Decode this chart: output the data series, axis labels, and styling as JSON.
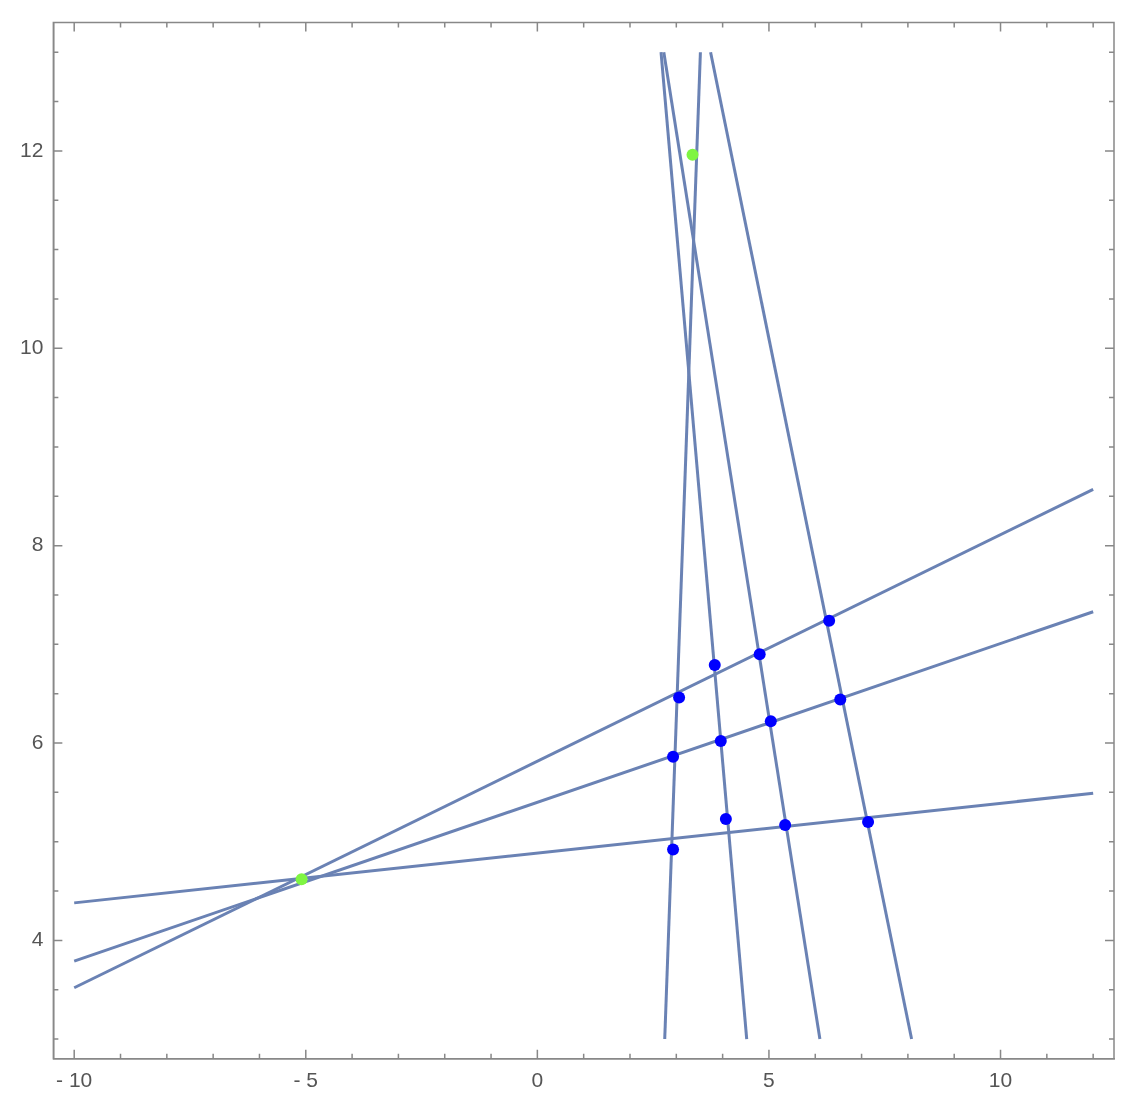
{
  "chart_data": {
    "type": "line",
    "xlim": [
      -10.45,
      12.45
    ],
    "ylim": [
      2.8,
      13.3
    ],
    "xticks": [
      {
        "value": -10,
        "label": "- 10"
      },
      {
        "value": -9,
        "label": null
      },
      {
        "value": -8,
        "label": null
      },
      {
        "value": -7,
        "label": null
      },
      {
        "value": -6,
        "label": null
      },
      {
        "value": -5,
        "label": "- 5"
      },
      {
        "value": -4,
        "label": null
      },
      {
        "value": -3,
        "label": null
      },
      {
        "value": -2,
        "label": null
      },
      {
        "value": -1,
        "label": null
      },
      0,
      {
        "value": 1,
        "label": null
      },
      {
        "value": 2,
        "label": null
      },
      {
        "value": 3,
        "label": null
      },
      {
        "value": 4,
        "label": null
      },
      5,
      {
        "value": 6,
        "label": null
      },
      {
        "value": 7,
        "label": null
      },
      {
        "value": 8,
        "label": null
      },
      {
        "value": 9,
        "label": null
      },
      10,
      {
        "value": 11,
        "label": null
      },
      {
        "value": 12,
        "label": null
      }
    ],
    "yticks": [
      {
        "value": 3,
        "label": null
      },
      {
        "value": 3.5,
        "label": null
      },
      4,
      {
        "value": 4.5,
        "label": null
      },
      {
        "value": 5,
        "label": null
      },
      {
        "value": 5.5,
        "label": null
      },
      6,
      {
        "value": 6.5,
        "label": null
      },
      {
        "value": 7,
        "label": null
      },
      {
        "value": 7.5,
        "label": null
      },
      8,
      {
        "value": 8.5,
        "label": null
      },
      {
        "value": 9,
        "label": null
      },
      {
        "value": 9.5,
        "label": null
      },
      10,
      {
        "value": 10.5,
        "label": null
      },
      {
        "value": 11,
        "label": null
      },
      {
        "value": 11.5,
        "label": null
      },
      12,
      {
        "value": 12.5,
        "label": null
      },
      {
        "value": 13,
        "label": null
      }
    ],
    "grid": false,
    "legend": false,
    "line_style": "solid",
    "series": [
      {
        "type": "line",
        "marker": "none",
        "color": "#6a82b4",
        "x": [
          -10,
          12
        ],
        "values": [
          3.52,
          8.57
        ]
      },
      {
        "type": "line",
        "marker": "none",
        "color": "#6a82b4",
        "x": [
          -10,
          12
        ],
        "values": [
          3.79,
          7.33
        ]
      },
      {
        "type": "line",
        "marker": "none",
        "color": "#6a82b4",
        "x": [
          -10,
          12
        ],
        "values": [
          4.38,
          5.49
        ]
      },
      {
        "type": "line",
        "marker": "none",
        "color": "#6a82b4",
        "x": [
          2.75,
          3.52
        ],
        "values": [
          3,
          13
        ]
      },
      {
        "type": "line",
        "marker": "none",
        "color": "#6a82b4",
        "x": [
          4.52,
          2.67
        ],
        "values": [
          3,
          13
        ]
      },
      {
        "type": "line",
        "marker": "none",
        "color": "#6a82b4",
        "x": [
          6.1,
          2.73
        ],
        "values": [
          3,
          13
        ]
      },
      {
        "type": "line",
        "marker": "none",
        "color": "#6a82b4",
        "x": [
          8.08,
          3.74
        ],
        "values": [
          3,
          13
        ]
      },
      {
        "type": "scatter",
        "marker": "circle",
        "color": "#0000ff",
        "x": [
          3.06,
          3.83,
          4.8,
          6.3,
          2.93,
          3.96,
          5.04,
          6.54,
          4.07,
          5.35,
          7.14,
          2.93
        ],
        "values": [
          6.46,
          6.79,
          6.9,
          7.24,
          5.86,
          6.02,
          6.22,
          6.44,
          5.23,
          5.17,
          5.2,
          4.92
        ]
      },
      {
        "type": "scatter",
        "marker": "circle",
        "color": "#7ff542",
        "x": [
          3.35,
          -5.09
        ],
        "values": [
          11.96,
          4.62
        ]
      }
    ]
  }
}
